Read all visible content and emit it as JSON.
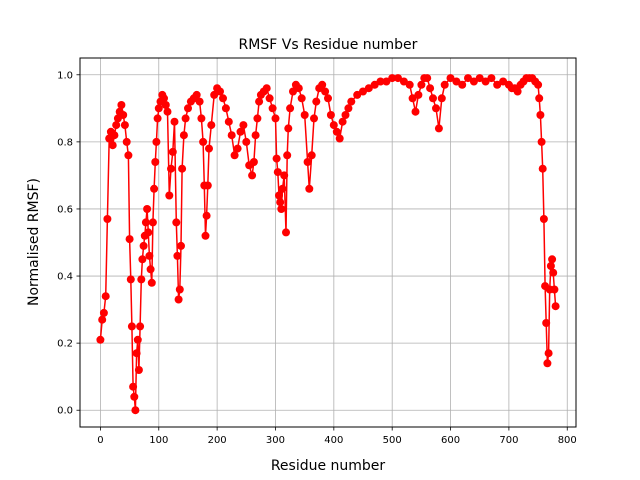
{
  "chart_data": {
    "type": "line",
    "title": "RMSF Vs Residue number",
    "xlabel": "Residue number",
    "ylabel": "Normalised RMSF)",
    "xlim": [
      -35,
      815
    ],
    "ylim": [
      -0.05,
      1.05
    ],
    "xticks": [
      0,
      100,
      200,
      300,
      400,
      500,
      600,
      700,
      800
    ],
    "yticks": [
      0.0,
      0.2,
      0.4,
      0.6,
      0.8,
      1.0
    ],
    "ytick_labels": [
      "0.0",
      "0.2",
      "0.4",
      "0.6",
      "0.8",
      "1.0"
    ],
    "grid": true,
    "series": [
      {
        "color": "#ff0000",
        "marker": "circle",
        "x": [
          0,
          3,
          6,
          9,
          12,
          15,
          18,
          21,
          24,
          27,
          30,
          33,
          36,
          39,
          42,
          45,
          48,
          50,
          52,
          54,
          56,
          58,
          60,
          62,
          64,
          66,
          68,
          70,
          72,
          74,
          76,
          78,
          80,
          82,
          84,
          86,
          88,
          90,
          92,
          94,
          96,
          98,
          100,
          103,
          106,
          109,
          112,
          115,
          118,
          121,
          124,
          127,
          130,
          132,
          134,
          136,
          138,
          140,
          143,
          146,
          150,
          155,
          160,
          165,
          170,
          173,
          176,
          178,
          180,
          182,
          184,
          186,
          190,
          195,
          200,
          205,
          210,
          215,
          220,
          225,
          230,
          235,
          240,
          245,
          250,
          255,
          260,
          263,
          266,
          269,
          272,
          275,
          280,
          285,
          290,
          295,
          300,
          302,
          304,
          306,
          308,
          310,
          312,
          315,
          318,
          320,
          322,
          325,
          330,
          335,
          340,
          345,
          350,
          355,
          358,
          362,
          366,
          370,
          375,
          380,
          385,
          390,
          395,
          400,
          405,
          410,
          415,
          420,
          425,
          430,
          440,
          450,
          460,
          470,
          480,
          490,
          500,
          510,
          520,
          530,
          535,
          540,
          545,
          550,
          555,
          560,
          565,
          570,
          575,
          580,
          585,
          590,
          600,
          610,
          620,
          630,
          640,
          650,
          660,
          670,
          680,
          690,
          700,
          705,
          710,
          715,
          720,
          725,
          730,
          735,
          740,
          745,
          750,
          752,
          754,
          756,
          758,
          760,
          762,
          764,
          766,
          768,
          770,
          772,
          774,
          776,
          778,
          780
        ],
        "y": [
          0.21,
          0.27,
          0.29,
          0.34,
          0.57,
          0.81,
          0.83,
          0.79,
          0.82,
          0.85,
          0.87,
          0.89,
          0.91,
          0.88,
          0.85,
          0.8,
          0.76,
          0.51,
          0.39,
          0.25,
          0.07,
          0.04,
          0.0,
          0.17,
          0.21,
          0.12,
          0.25,
          0.39,
          0.45,
          0.49,
          0.52,
          0.56,
          0.6,
          0.53,
          0.46,
          0.42,
          0.38,
          0.56,
          0.66,
          0.74,
          0.8,
          0.87,
          0.9,
          0.92,
          0.94,
          0.93,
          0.91,
          0.89,
          0.64,
          0.72,
          0.77,
          0.86,
          0.56,
          0.46,
          0.33,
          0.36,
          0.49,
          0.72,
          0.82,
          0.87,
          0.9,
          0.92,
          0.93,
          0.94,
          0.92,
          0.87,
          0.8,
          0.67,
          0.52,
          0.58,
          0.67,
          0.78,
          0.85,
          0.94,
          0.96,
          0.95,
          0.93,
          0.9,
          0.86,
          0.82,
          0.76,
          0.78,
          0.83,
          0.85,
          0.8,
          0.73,
          0.7,
          0.74,
          0.82,
          0.87,
          0.92,
          0.94,
          0.95,
          0.96,
          0.93,
          0.9,
          0.87,
          0.75,
          0.71,
          0.64,
          0.62,
          0.6,
          0.66,
          0.7,
          0.53,
          0.76,
          0.84,
          0.9,
          0.95,
          0.97,
          0.96,
          0.93,
          0.88,
          0.74,
          0.66,
          0.76,
          0.87,
          0.92,
          0.96,
          0.97,
          0.95,
          0.93,
          0.88,
          0.85,
          0.83,
          0.81,
          0.86,
          0.88,
          0.9,
          0.92,
          0.94,
          0.95,
          0.96,
          0.97,
          0.98,
          0.98,
          0.99,
          0.99,
          0.98,
          0.97,
          0.93,
          0.89,
          0.94,
          0.97,
          0.99,
          0.99,
          0.96,
          0.93,
          0.9,
          0.84,
          0.93,
          0.97,
          0.99,
          0.98,
          0.97,
          0.99,
          0.98,
          0.99,
          0.98,
          0.99,
          0.97,
          0.98,
          0.97,
          0.96,
          0.96,
          0.95,
          0.97,
          0.98,
          0.99,
          0.99,
          0.99,
          0.98,
          0.97,
          0.93,
          0.88,
          0.8,
          0.72,
          0.57,
          0.37,
          0.26,
          0.14,
          0.17,
          0.36,
          0.43,
          0.45,
          0.41,
          0.36,
          0.31
        ]
      }
    ]
  }
}
